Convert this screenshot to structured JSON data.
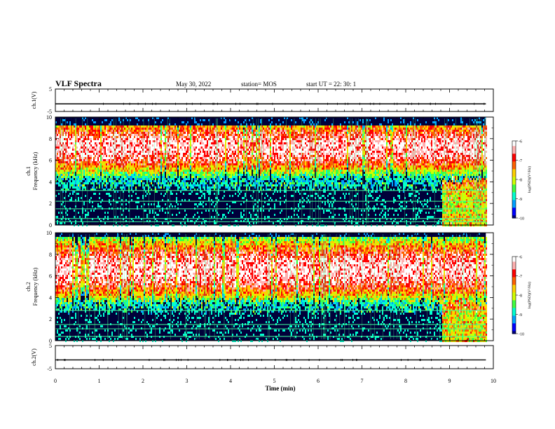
{
  "header": {
    "title": "VLF Spectra",
    "date": "May 30, 2022",
    "station": "station= MOS",
    "start": "start  UT  =    22: 30: 1"
  },
  "chart_data": {
    "type": "heatmap",
    "xlabel": "Time  (min)",
    "xlim": [
      0,
      10
    ],
    "xticks": [
      "0",
      "1",
      "2",
      "3",
      "4",
      "5",
      "6",
      "7",
      "8",
      "9",
      "10"
    ],
    "panels": [
      {
        "id": "ch1-wave",
        "type": "line",
        "ylabel": "ch.1(V)",
        "ylim": [
          -5,
          5
        ],
        "yticks": [
          "5",
          "-5"
        ],
        "level": -1.6
      },
      {
        "id": "ch1-spec",
        "type": "heatmap",
        "ylabel_line1": "ch.1",
        "ylabel_line2": "Frequency  (kHz)",
        "ylim": [
          0,
          10
        ],
        "yticks": [
          "0",
          "2",
          "4",
          "6",
          "8",
          "10"
        ],
        "band_low_khz": 4.2,
        "band_high_khz": 9.3,
        "peak_khz": 7.2,
        "lines_khz": [
          0.3,
          0.6,
          1.5,
          2.2,
          3.2
        ]
      },
      {
        "id": "ch2-spec",
        "type": "heatmap",
        "ylabel_line1": "ch.2",
        "ylabel_line2": "Frequency  (kHz)",
        "ylim": [
          0,
          10
        ],
        "yticks": [
          "0",
          "2",
          "4",
          "6",
          "8",
          "10"
        ],
        "band_low_khz": 3.6,
        "band_high_khz": 9.6,
        "peak_khz": 6.6,
        "lines_khz": [
          0.4,
          1.1,
          1.5,
          2.8
        ]
      },
      {
        "id": "ch2-wave",
        "type": "line",
        "ylabel": "ch.2(V)",
        "ylim": [
          -5,
          5
        ],
        "yticks": [
          "5",
          "-5"
        ],
        "level": -1.2
      }
    ],
    "colorbar": {
      "label": "log(PSD)(V²/Hz)",
      "range": [
        -10,
        -6
      ],
      "ticks": [
        "-6",
        "-7",
        "-8",
        "-9",
        "-10"
      ],
      "colors": [
        "#00007a",
        "#0000ff",
        "#00a0ff",
        "#00ffd0",
        "#40ff40",
        "#d0ff00",
        "#ffd000",
        "#ff6000",
        "#ff0000",
        "#ffb0b0",
        "#ffffff"
      ]
    }
  }
}
